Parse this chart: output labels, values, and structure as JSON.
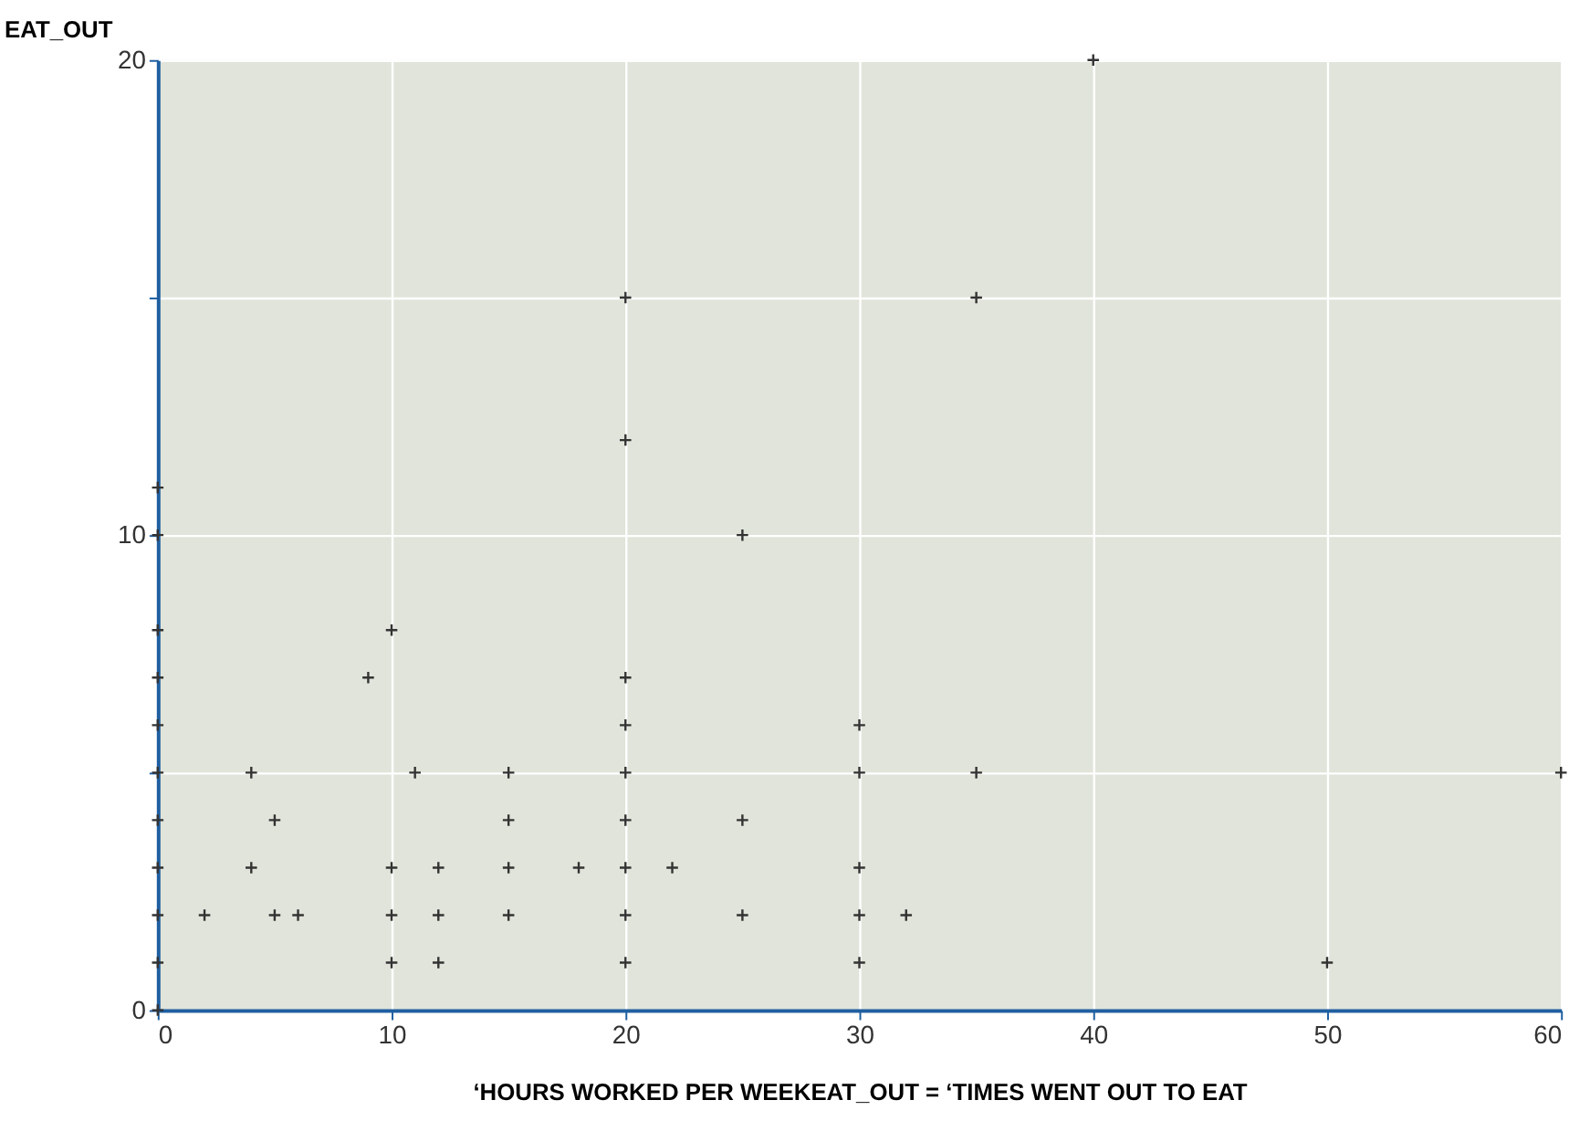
{
  "chart_data": {
    "type": "scatter",
    "xlabel": "‘HOURS WORKED PER WEEKEAT_OUT = ‘TIMES WENT OUT TO EAT",
    "ylabel": "EAT_OUT",
    "x": [
      0,
      0,
      0,
      0,
      0,
      0,
      0,
      0,
      0,
      0,
      0,
      2,
      4,
      4,
      5,
      5,
      6,
      9,
      10,
      10,
      10,
      10,
      11,
      12,
      12,
      12,
      15,
      15,
      15,
      15,
      18,
      20,
      20,
      20,
      20,
      20,
      20,
      20,
      20,
      20,
      22,
      25,
      25,
      25,
      30,
      30,
      30,
      30,
      30,
      32,
      35,
      35,
      40,
      50,
      60
    ],
    "series": [
      {
        "color": "#333333",
        "values": [
          0,
          1,
          2,
          3,
          4,
          5,
          6,
          7,
          8,
          10,
          11,
          2,
          5,
          3,
          4,
          2,
          2,
          7,
          8,
          3,
          2,
          1,
          5,
          3,
          2,
          1,
          5,
          4,
          3,
          2,
          3,
          15,
          12,
          7,
          6,
          5,
          4,
          3,
          2,
          1,
          3,
          10,
          4,
          2,
          6,
          5,
          3,
          2,
          1,
          2,
          15,
          5,
          20,
          1,
          5
        ]
      }
    ],
    "xlim": [
      0,
      60
    ],
    "ylim": [
      0,
      20
    ],
    "xticks": [
      0,
      10,
      20,
      30,
      40,
      50,
      60
    ],
    "yticks": [
      0,
      {
        "value": 5,
        "label": null
      },
      10,
      {
        "value": 15,
        "label": null
      },
      20
    ],
    "grid": true,
    "marker": "cross"
  }
}
